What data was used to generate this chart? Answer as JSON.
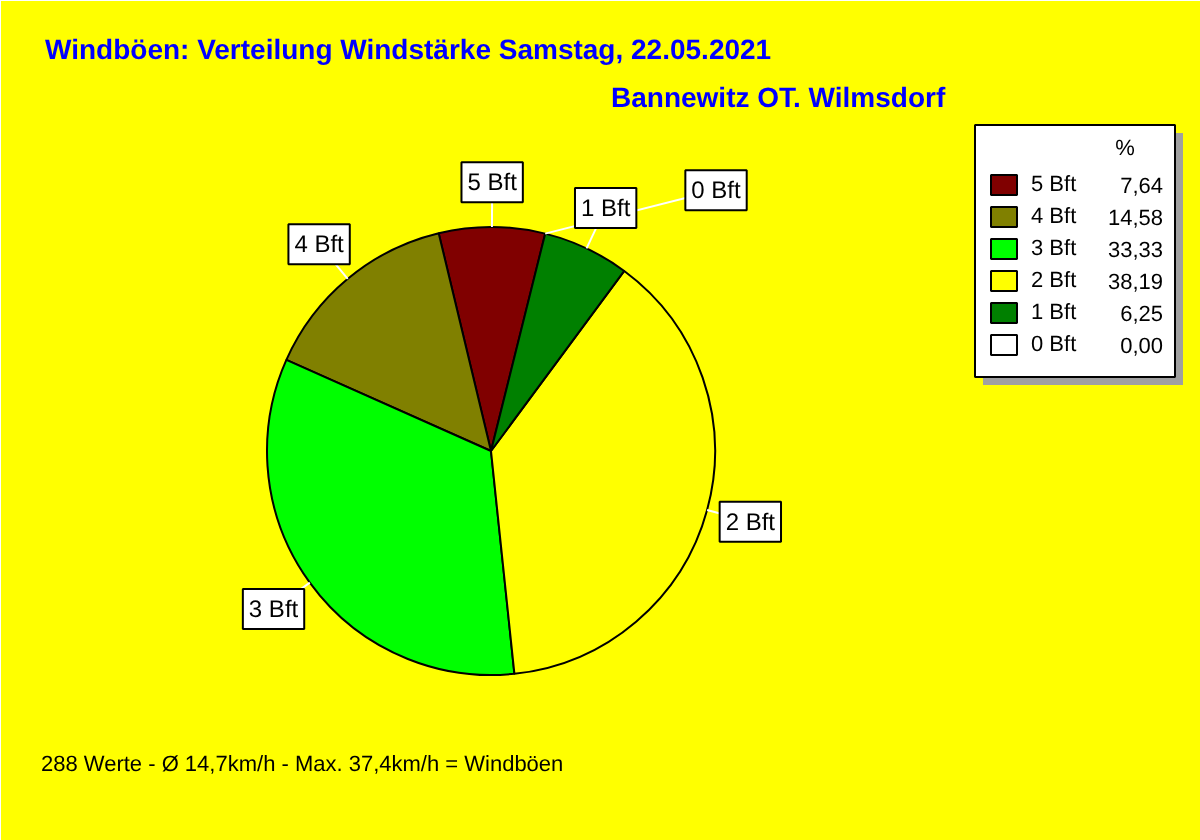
{
  "chart_data": {
    "type": "pie",
    "title": "Windböen: Verteilung Windstärke  Samstag, 22.05.2021",
    "subtitle": "Bannewitz OT. Wilmsdorf",
    "categories": [
      "5 Bft",
      "4 Bft",
      "3 Bft",
      "2 Bft",
      "1 Bft",
      "0 Bft"
    ],
    "values": [
      7.64,
      14.58,
      33.33,
      38.19,
      6.25,
      0.0
    ],
    "value_labels": [
      "7,64",
      "14,58",
      "33,33",
      "38,19",
      "6,25",
      "0,00"
    ],
    "colors": [
      "#800000",
      "#808000",
      "#00ff00",
      "#ffff00",
      "#008000",
      "#ffffff"
    ],
    "legend": "top right",
    "legend_title": "%",
    "annotations": [
      "288 Werte   -   Ø 14,7km/h  -  Max. 37,4km/h = Windböen"
    ]
  }
}
